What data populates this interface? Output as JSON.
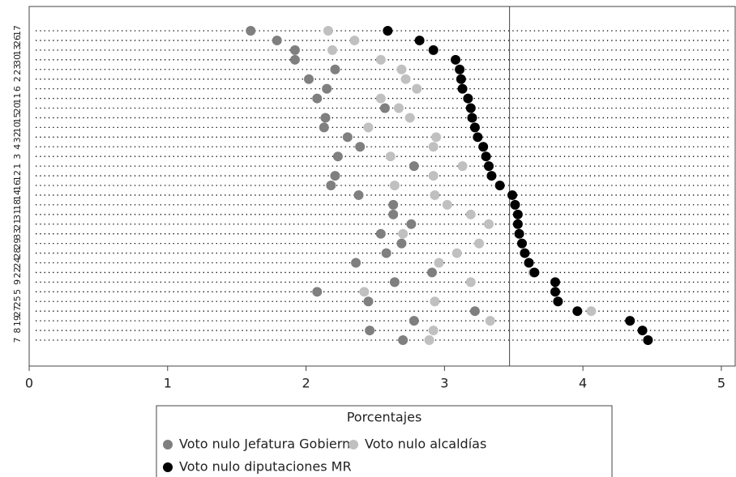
{
  "chart_data": {
    "type": "dot",
    "categories": [
      "17",
      "26",
      "13",
      "30",
      "23",
      "2",
      "6",
      "11",
      "20",
      "15",
      "10",
      "32",
      "4",
      "3",
      "1",
      "12",
      "16",
      "14",
      "18",
      "31",
      "21",
      "33",
      "29",
      "28",
      "24",
      "22",
      "9",
      "5",
      "25",
      "27",
      "19",
      "8",
      "7"
    ],
    "series": [
      {
        "name": "Voto nulo Jefatura Gobierno",
        "color": "#7f7f7f",
        "values": [
          1.6,
          1.79,
          1.92,
          1.92,
          2.21,
          2.02,
          2.15,
          2.08,
          2.57,
          2.14,
          2.13,
          2.3,
          2.39,
          2.23,
          2.78,
          2.21,
          2.18,
          2.38,
          2.63,
          2.63,
          2.76,
          2.54,
          2.69,
          2.58,
          2.36,
          2.91,
          2.64,
          2.08,
          2.45,
          3.22,
          2.78,
          2.46,
          2.7
        ]
      },
      {
        "name": "Voto nulo alcaldías",
        "color": "#c0c0c0",
        "values": [
          2.16,
          2.35,
          2.19,
          2.54,
          2.69,
          2.72,
          2.8,
          2.54,
          2.67,
          2.75,
          2.45,
          2.94,
          2.92,
          2.61,
          3.13,
          2.92,
          2.64,
          2.93,
          3.02,
          3.19,
          3.32,
          2.7,
          3.25,
          3.09,
          2.96,
          3.64,
          3.19,
          2.42,
          2.93,
          4.06,
          3.33,
          2.92,
          2.89
        ]
      },
      {
        "name": "Voto nulo diputaciones MR",
        "color": "#000000",
        "values": [
          2.59,
          2.82,
          2.92,
          3.08,
          3.11,
          3.12,
          3.13,
          3.17,
          3.19,
          3.2,
          3.22,
          3.24,
          3.28,
          3.3,
          3.32,
          3.34,
          3.4,
          3.49,
          3.51,
          3.53,
          3.53,
          3.54,
          3.56,
          3.58,
          3.61,
          3.65,
          3.8,
          3.8,
          3.82,
          3.96,
          4.34,
          4.43,
          4.47
        ]
      }
    ],
    "xlim": [
      0,
      5.1
    ],
    "xticks": [
      0,
      1,
      2,
      3,
      4,
      5
    ],
    "vline": 3.47,
    "legend": {
      "title": "Porcentajes",
      "position": "bottom"
    }
  }
}
